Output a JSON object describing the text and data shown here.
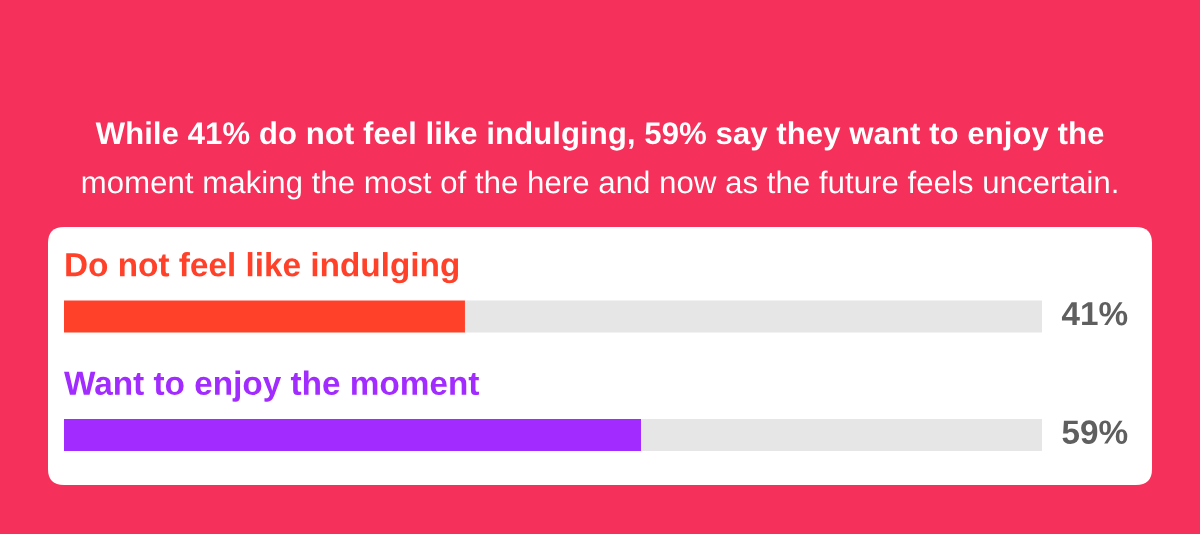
{
  "chart_data": {
    "type": "bar",
    "orientation": "horizontal",
    "stacked": true,
    "title": "While 41% do not feel like indulging, 59% say they want to enjoy the",
    "subtitle": "moment making the most of the here and now as the future feels uncertain.",
    "categories": [
      "Do not feel like indulging",
      "Want to enjoy the moment"
    ],
    "series": [
      {
        "colors": [
          "#ff4129",
          "#a22bff"
        ],
        "values": [
          41,
          59
        ],
        "value_labels": [
          "41%",
          "59%"
        ]
      },
      {
        "color": "#e6e6e6",
        "values": [
          59,
          41
        ]
      }
    ],
    "tick_labels": "y"
  }
}
